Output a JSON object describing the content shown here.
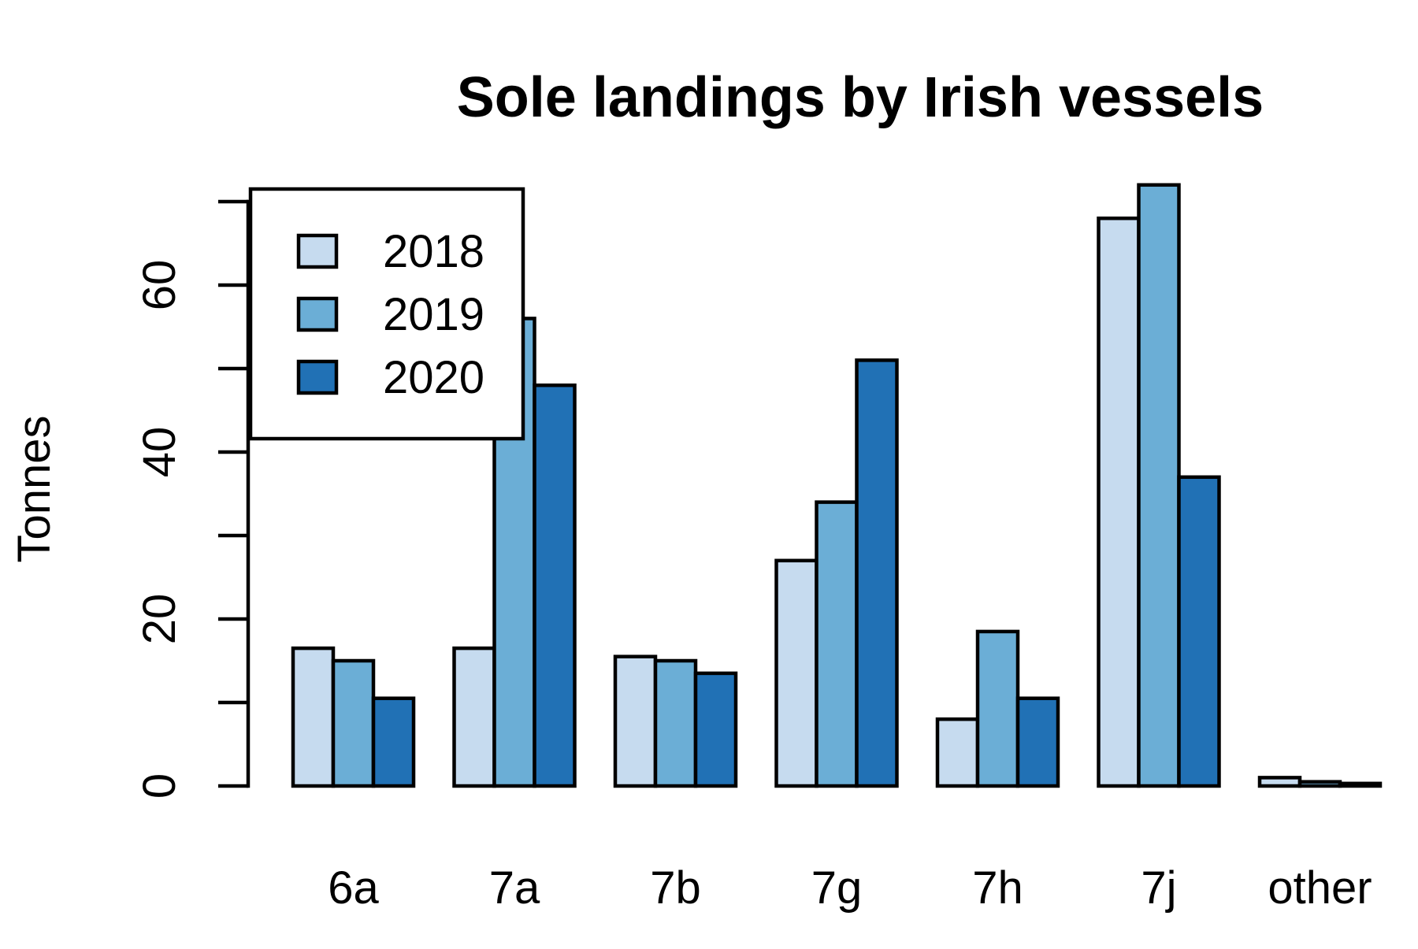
{
  "chart_data": {
    "type": "bar",
    "title": "Sole landings by Irish vessels",
    "xlabel": "",
    "ylabel": "Tonnes",
    "categories": [
      "6a",
      "7a",
      "7b",
      "7g",
      "7h",
      "7j",
      "other"
    ],
    "series": [
      {
        "name": "2018",
        "color": "#c6dbef",
        "values": [
          16.5,
          16.5,
          15.5,
          27,
          8,
          68,
          1
        ]
      },
      {
        "name": "2019",
        "color": "#6baed6",
        "values": [
          15,
          56,
          15,
          34,
          18.5,
          72,
          0.5
        ]
      },
      {
        "name": "2020",
        "color": "#2171b5",
        "values": [
          10.5,
          48,
          13.5,
          51,
          10.5,
          37,
          0.3
        ]
      }
    ],
    "yticks": [
      0,
      20,
      40,
      60
    ],
    "yminor_ticks": [
      10,
      30,
      50,
      70
    ],
    "ylim": [
      0,
      72
    ],
    "grid": false,
    "legend": {
      "position": "top-left",
      "entries": [
        "2018",
        "2019",
        "2020"
      ]
    }
  }
}
